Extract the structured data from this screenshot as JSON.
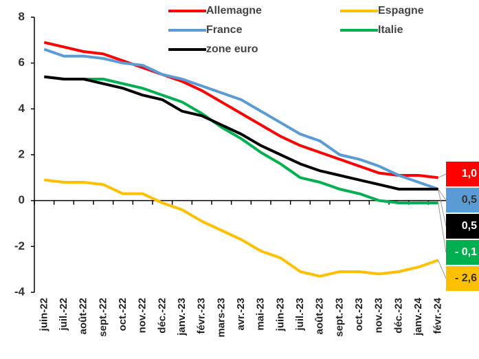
{
  "chart_data": {
    "type": "line",
    "categories": [
      "juin-22",
      "juil.-22",
      "août-22",
      "sept.-22",
      "oct.-22",
      "nov.-22",
      "déc.-22",
      "janv.-23",
      "févr.-23",
      "mars-23",
      "avr.-23",
      "mai-23",
      "juin-23",
      "juil.-23",
      "août-23",
      "sept.-23",
      "oct.-23",
      "nov.-23",
      "déc.-23",
      "janv.-24",
      "févr.-24"
    ],
    "series": [
      {
        "name": "Allemagne",
        "color": "#ff0000",
        "values": [
          6.9,
          6.7,
          6.5,
          6.4,
          6.1,
          5.8,
          5.5,
          5.2,
          4.8,
          4.3,
          3.8,
          3.3,
          2.8,
          2.4,
          2.1,
          1.8,
          1.5,
          1.2,
          1.1,
          1.1,
          1.0
        ],
        "value_labels": [
          null,
          null,
          null,
          null,
          null,
          null,
          null,
          null,
          null,
          null,
          null,
          null,
          null,
          null,
          null,
          null,
          null,
          null,
          null,
          null,
          "1,0"
        ]
      },
      {
        "name": "Espagne",
        "color": "#ffc000",
        "values": [
          0.9,
          0.8,
          0.8,
          0.7,
          0.3,
          0.3,
          -0.1,
          -0.4,
          -0.9,
          -1.3,
          -1.7,
          -2.2,
          -2.5,
          -3.1,
          -3.3,
          -3.1,
          -3.1,
          -3.2,
          -3.1,
          -2.9,
          -2.6
        ],
        "value_labels": [
          null,
          null,
          null,
          null,
          null,
          null,
          null,
          null,
          null,
          null,
          null,
          null,
          null,
          null,
          null,
          null,
          null,
          null,
          null,
          null,
          "- 2,6"
        ]
      },
      {
        "name": "France",
        "color": "#5b9bd5",
        "values": [
          6.6,
          6.3,
          6.3,
          6.2,
          6.0,
          5.9,
          5.5,
          5.3,
          5.0,
          4.7,
          4.4,
          3.9,
          3.4,
          2.9,
          2.6,
          2.0,
          1.8,
          1.5,
          1.1,
          0.8,
          0.5
        ],
        "value_labels": [
          null,
          null,
          null,
          null,
          null,
          null,
          null,
          null,
          null,
          null,
          null,
          null,
          null,
          null,
          null,
          null,
          null,
          null,
          null,
          null,
          "0,5"
        ]
      },
      {
        "name": "Italie",
        "color": "#00b050",
        "values": [
          5.4,
          5.3,
          5.3,
          5.3,
          5.1,
          4.9,
          4.6,
          4.3,
          3.8,
          3.2,
          2.7,
          2.1,
          1.6,
          1.0,
          0.8,
          0.5,
          0.3,
          0.0,
          -0.1,
          -0.1,
          -0.1
        ],
        "value_labels": [
          null,
          null,
          null,
          null,
          null,
          null,
          null,
          null,
          null,
          null,
          null,
          null,
          null,
          null,
          null,
          null,
          null,
          null,
          null,
          null,
          "- 0,1"
        ]
      },
      {
        "name": "zone euro",
        "color": "#000000",
        "values": [
          5.4,
          5.3,
          5.3,
          5.1,
          4.9,
          4.6,
          4.4,
          3.9,
          3.7,
          3.3,
          2.9,
          2.4,
          2.0,
          1.6,
          1.3,
          1.1,
          0.9,
          0.7,
          0.5,
          0.5,
          0.5
        ],
        "value_labels": [
          null,
          null,
          null,
          null,
          null,
          null,
          null,
          null,
          null,
          null,
          null,
          null,
          null,
          null,
          null,
          null,
          null,
          null,
          null,
          null,
          "0,5"
        ]
      }
    ],
    "ylim": [
      -4,
      8
    ],
    "yticks": [
      -4,
      -2,
      0,
      2,
      4,
      6,
      8
    ],
    "grid": false
  }
}
